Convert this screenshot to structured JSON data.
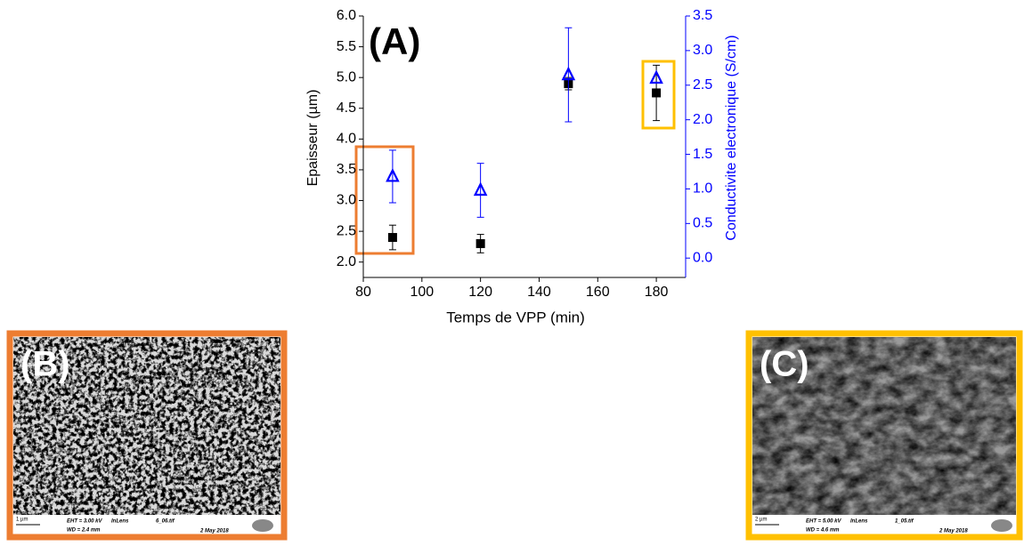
{
  "chart_data": {
    "type": "scatter",
    "annotation": "(A)",
    "x_label": "Temps de VPP (min)",
    "y_label": "Epaisseur (µm)",
    "y2_label": "Conductivite electronique (S/cm)",
    "x": [
      90,
      120,
      150,
      180
    ],
    "xlim": [
      80,
      190
    ],
    "xticks": [
      80,
      100,
      120,
      140,
      160,
      180
    ],
    "ylim": [
      1.75,
      6.0
    ],
    "yticks": [
      {
        "value": 2,
        "label": "2.0"
      },
      2.5,
      {
        "value": 3,
        "label": "3.0"
      },
      3.5,
      {
        "value": 4,
        "label": "4.0"
      },
      4.5,
      {
        "value": 5,
        "label": "5.0"
      },
      5.5,
      {
        "value": 6,
        "label": "6.0"
      }
    ],
    "y2lim": [
      -0.28,
      3.5
    ],
    "y2ticks": [
      {
        "value": 0,
        "label": "0.0"
      },
      0.5,
      {
        "value": 1,
        "label": "1.0"
      },
      1.5,
      {
        "value": 2,
        "label": "2.0"
      },
      2.5,
      {
        "value": 3,
        "label": "3.0"
      },
      3.5
    ],
    "series": [
      {
        "color": "#000000",
        "marker": "square",
        "values": [
          2.4,
          2.3,
          4.9,
          4.75
        ],
        "errors": [
          0.2,
          0.15,
          0.1,
          0.45
        ]
      },
      {
        "color": "#0000ff",
        "marker": "triangle",
        "axis": "y2",
        "values": [
          1.18,
          0.98,
          2.65,
          2.6
        ],
        "errors": [
          0.38,
          0.39,
          0.68,
          null
        ]
      }
    ]
  },
  "panels": [
    {
      "label": "(B)",
      "scale": "1 µm",
      "info": [
        "EHT = 3.00 kV",
        "WD = 2.4 mm",
        "InLens",
        "6_06.tif",
        "2 May 2018"
      ]
    },
    {
      "label": "(C)",
      "scale": "2 µm",
      "info": [
        "EHT = 5.00 kV",
        "WD = 4.6 mm",
        "InLens",
        "1_05.tif",
        "2 May 2018"
      ]
    }
  ]
}
